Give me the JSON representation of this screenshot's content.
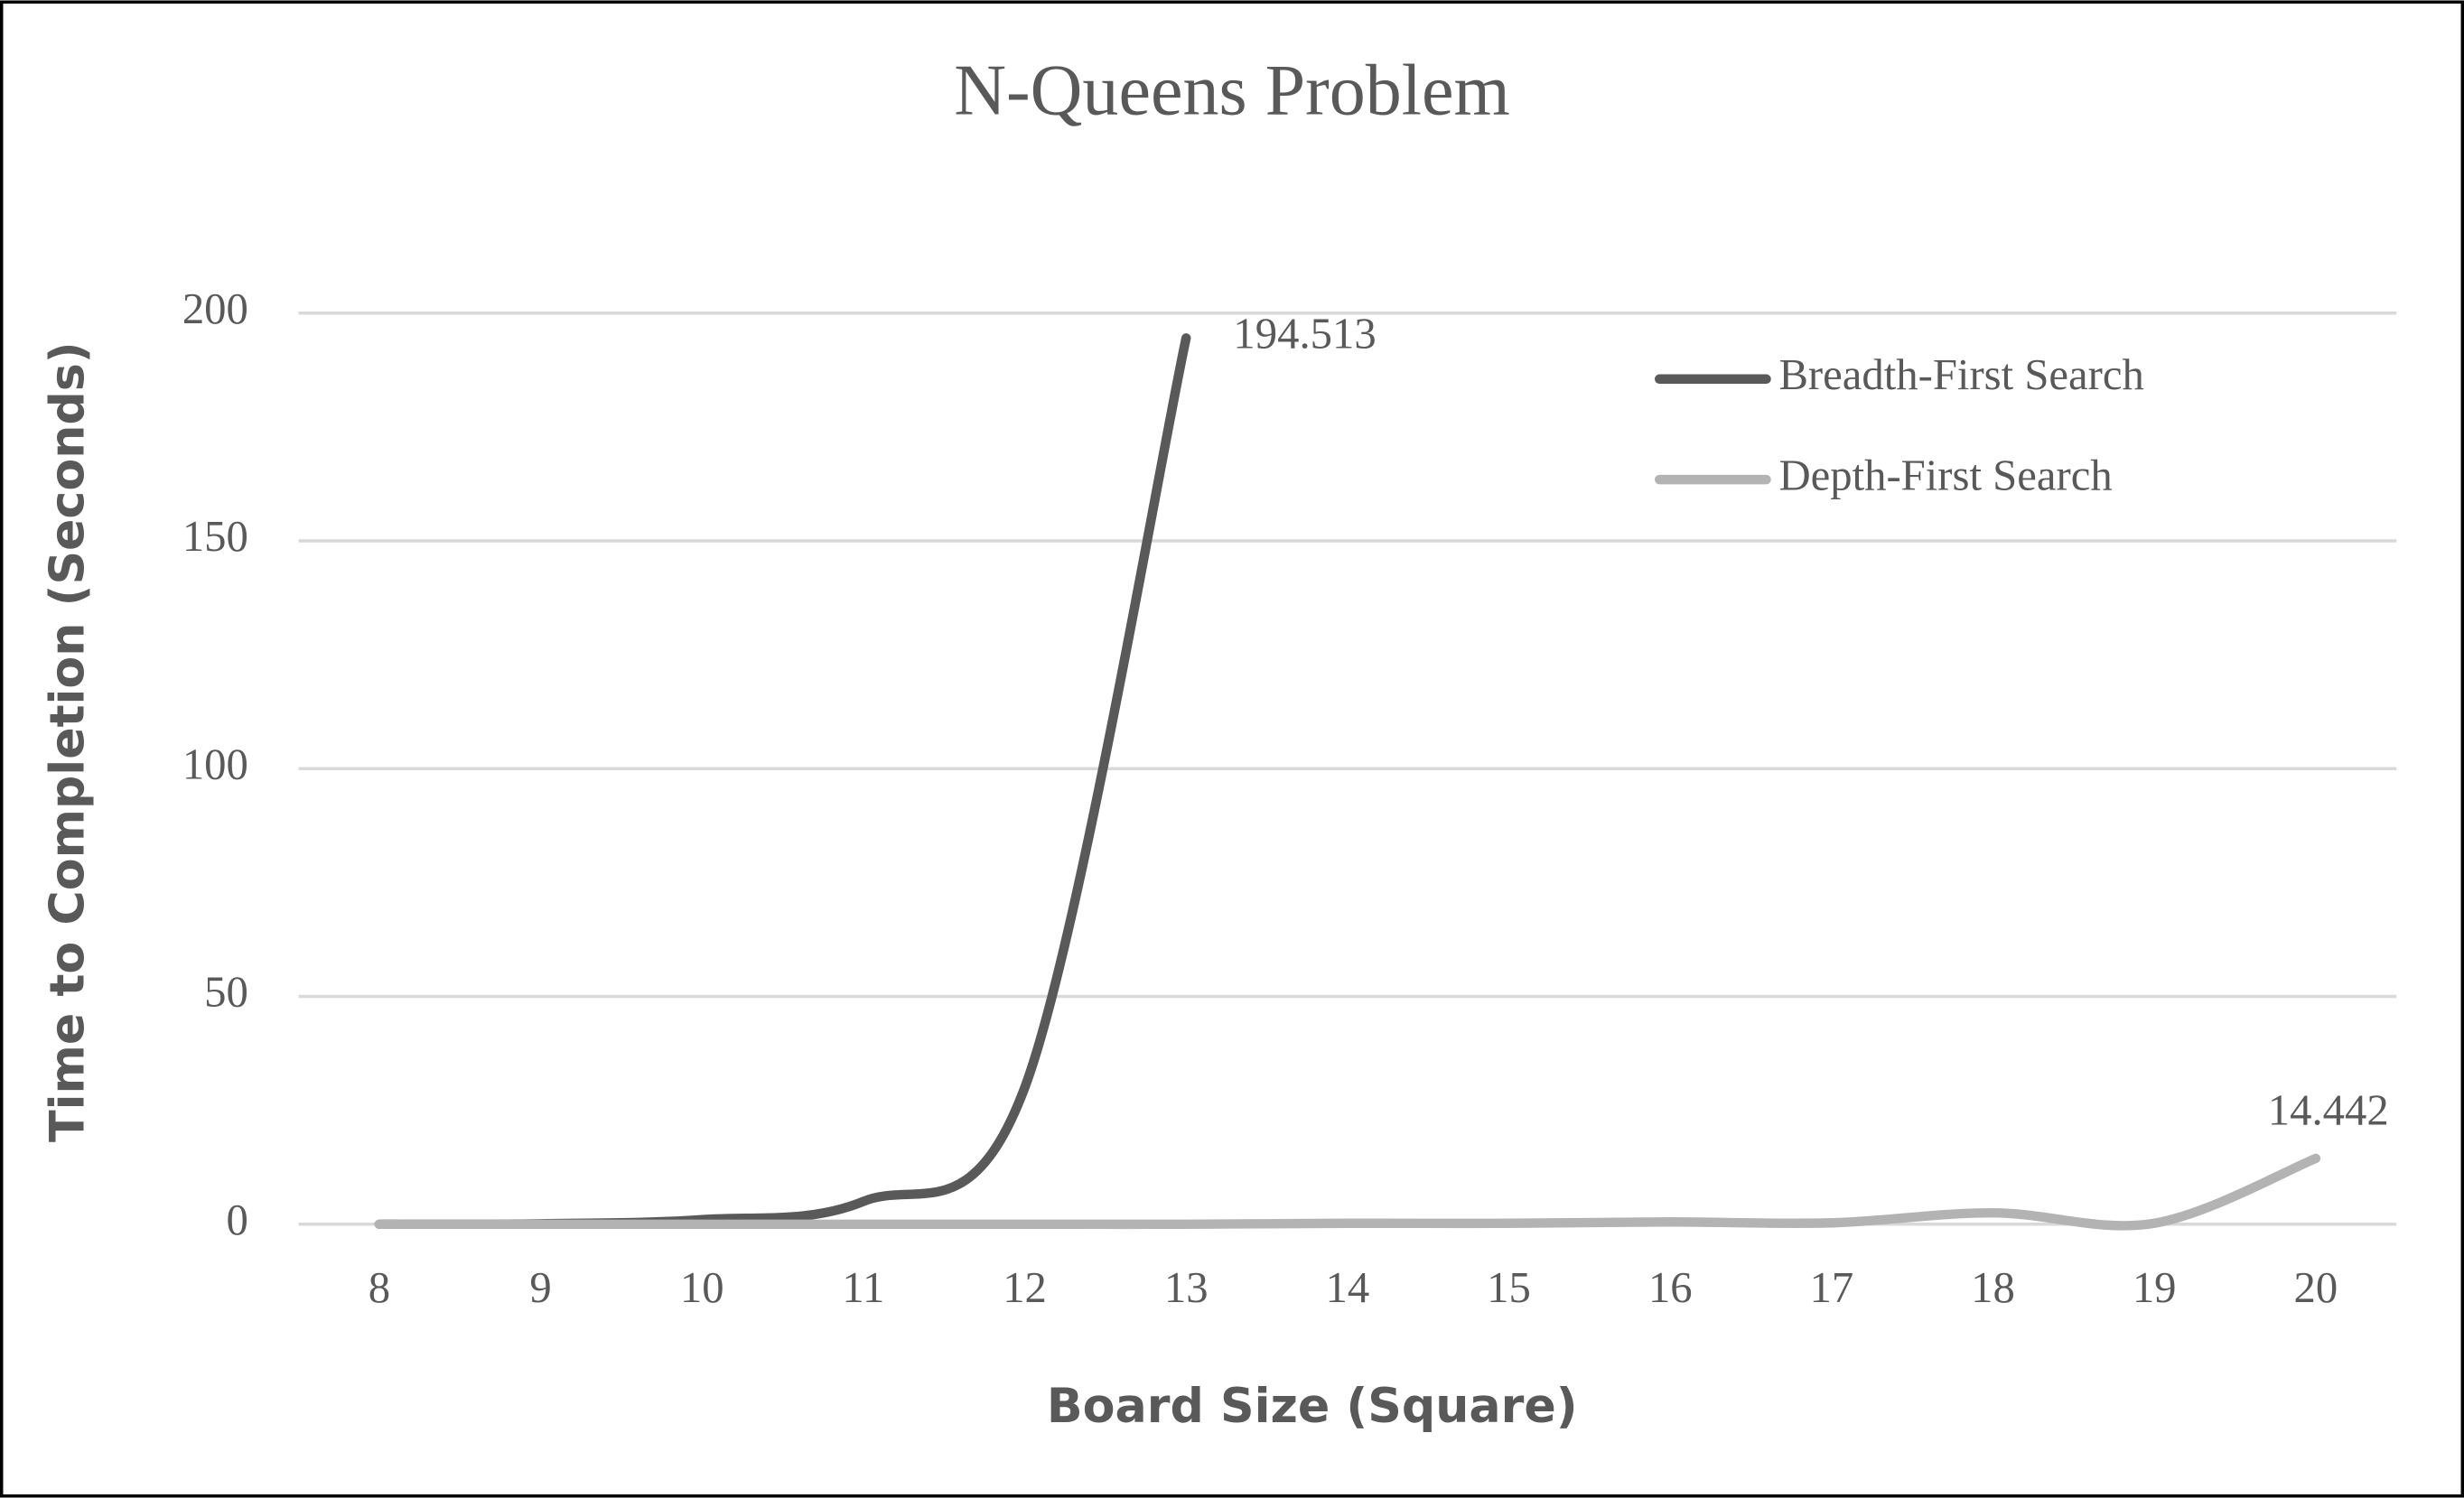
{
  "chart_data": {
    "type": "line",
    "title": "N-Queens Problem",
    "x_label": "Board Size (Square)",
    "y_label": "Time to Completion (Seconds)",
    "categories": [
      "8",
      "9",
      "10",
      "11",
      "12",
      "13",
      "14",
      "15",
      "16",
      "17",
      "18",
      "19",
      "20"
    ],
    "series": [
      {
        "name": "Breadth-First Search",
        "color": "#595959",
        "values": [
          0,
          0.1,
          1,
          5,
          30,
          194.513,
          null,
          null,
          null,
          null,
          null,
          null,
          null
        ]
      },
      {
        "name": "Depth-First Search",
        "color": "#b3b3b3",
        "values": [
          0,
          0,
          0,
          0,
          0,
          0,
          0.2,
          0.2,
          0.5,
          0.3,
          2.5,
          0.2,
          14.442
        ]
      }
    ],
    "ylim": [
      0,
      200
    ],
    "yticks": [
      0,
      50,
      100,
      150,
      200
    ],
    "grid": true,
    "legend": "top-right"
  }
}
